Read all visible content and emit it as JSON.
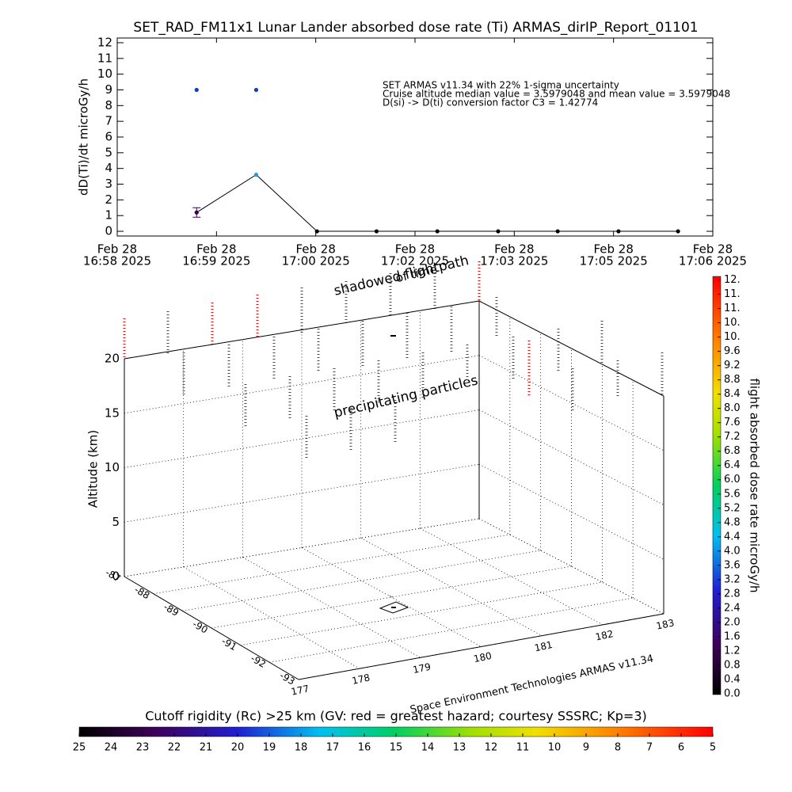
{
  "chart_data": [
    {
      "type": "line",
      "title": "SET_RAD_FM11x1  Lunar Lander absorbed dose rate (Ti) ARMAS_dirIP_Report_01101",
      "ylabel": "dD(Ti)/dt microGy/h",
      "xlim": [
        "16:58:00",
        "17:06:00"
      ],
      "xticks": [
        {
          "value": "16:58:00",
          "label": [
            "Feb 28",
            "16:58 2025"
          ]
        },
        {
          "value": "16:59:20",
          "label": [
            "Feb 28",
            "16:59 2025"
          ]
        },
        {
          "value": "17:00:40",
          "label": [
            "Feb 28",
            "17:00 2025"
          ]
        },
        {
          "value": "17:02:00",
          "label": [
            "Feb 28",
            "17:02 2025"
          ]
        },
        {
          "value": "17:03:20",
          "label": [
            "Feb 28",
            "17:03 2025"
          ]
        },
        {
          "value": "17:04:40",
          "label": [
            "Feb 28",
            "17:05 2025"
          ]
        },
        {
          "value": "17:06:00",
          "label": [
            "Feb 28",
            "17:06 2025"
          ]
        }
      ],
      "ylim": [
        -0.3,
        12.3
      ],
      "yticks": [
        0,
        1,
        2,
        3,
        4,
        5,
        6,
        7,
        8,
        9,
        10,
        11,
        12
      ],
      "series": [
        {
          "x": [
            "16:59:04",
            "16:59:52",
            "17:00:41",
            "17:01:29",
            "17:02:18",
            "17:03:07",
            "17:03:55",
            "17:04:44",
            "17:05:32"
          ],
          "values": [
            1.2,
            3.6,
            0,
            0,
            0,
            0,
            0,
            0,
            0
          ],
          "errors": [
            0.3,
            0,
            0,
            0,
            0,
            0,
            0,
            0,
            0
          ],
          "colors": [
            "#3a0050",
            "#2a9ad8",
            "#000000",
            "#000000",
            "#000000",
            "#000000",
            "#000000",
            "#000000",
            "#000000"
          ],
          "color": "#000000"
        },
        {
          "x": [
            "16:59:04",
            "16:59:52"
          ],
          "values": [
            9,
            9
          ],
          "colors": [
            "#1040c0",
            "#1040c0"
          ]
        }
      ],
      "annotations": [
        "SET ARMAS v11.34 with 22% 1-sigma uncertainty",
        "Cruise altitude median value = 3.5979048 and mean value = 3.5979048",
        "D(si) -> D(ti) conversion factor C3 = 1.42774"
      ]
    },
    {
      "type": "3d",
      "zlabel": "Altitude (km)",
      "xlim": [
        177,
        183
      ],
      "xticks": [
        177,
        178,
        179,
        180,
        181,
        182,
        183
      ],
      "ylim": [
        -87,
        -93
      ],
      "yticks": [
        -87,
        -88,
        -89,
        -90,
        -91,
        -92,
        -93
      ],
      "zlim": [
        0,
        20
      ],
      "zticks": [
        0,
        5,
        10,
        15,
        20
      ],
      "annotations": [
        "shadowed flightpath",
        "of time",
        "precipitating particles",
        "Space Environment Technologies ARMAS v11.34"
      ]
    },
    {
      "type": "colorbar",
      "orientation": "vertical",
      "label": "flight absorbed dose rate microGy/h",
      "clim": [
        0,
        11.7
      ],
      "ticks": [
        {
          "value": 0,
          "label": "0.0"
        },
        0.4,
        0.8,
        1.2,
        1.6,
        {
          "value": 2,
          "label": "2.0"
        },
        2.4,
        2.8,
        3.2,
        3.6,
        {
          "value": 4,
          "label": "4.0"
        },
        4.4,
        4.8,
        5.2,
        5.6,
        {
          "value": 6,
          "label": "6.0"
        },
        6.4,
        6.8,
        7.2,
        7.6,
        {
          "value": 8,
          "label": "8.0"
        },
        8.4,
        8.8,
        9.2,
        9.6,
        {
          "value": 10,
          "label": "10."
        },
        {
          "value": 10.4,
          "label": "10."
        },
        {
          "value": 10.8,
          "label": "11."
        },
        {
          "value": 11.2,
          "label": "11."
        },
        {
          "value": 11.6,
          "label": "12."
        }
      ]
    },
    {
      "type": "colorbar",
      "orientation": "horizontal",
      "title": "Cutoff rigidity (Rc) >25 km (GV: red = greatest hazard; courtesy SSSRC; Kp=3)",
      "clim": [
        25,
        5
      ],
      "ticks": [
        25,
        24,
        23,
        22,
        21,
        20,
        19,
        18,
        17,
        16,
        15,
        14,
        13,
        12,
        11,
        10,
        9,
        8,
        7,
        6,
        5
      ]
    }
  ]
}
